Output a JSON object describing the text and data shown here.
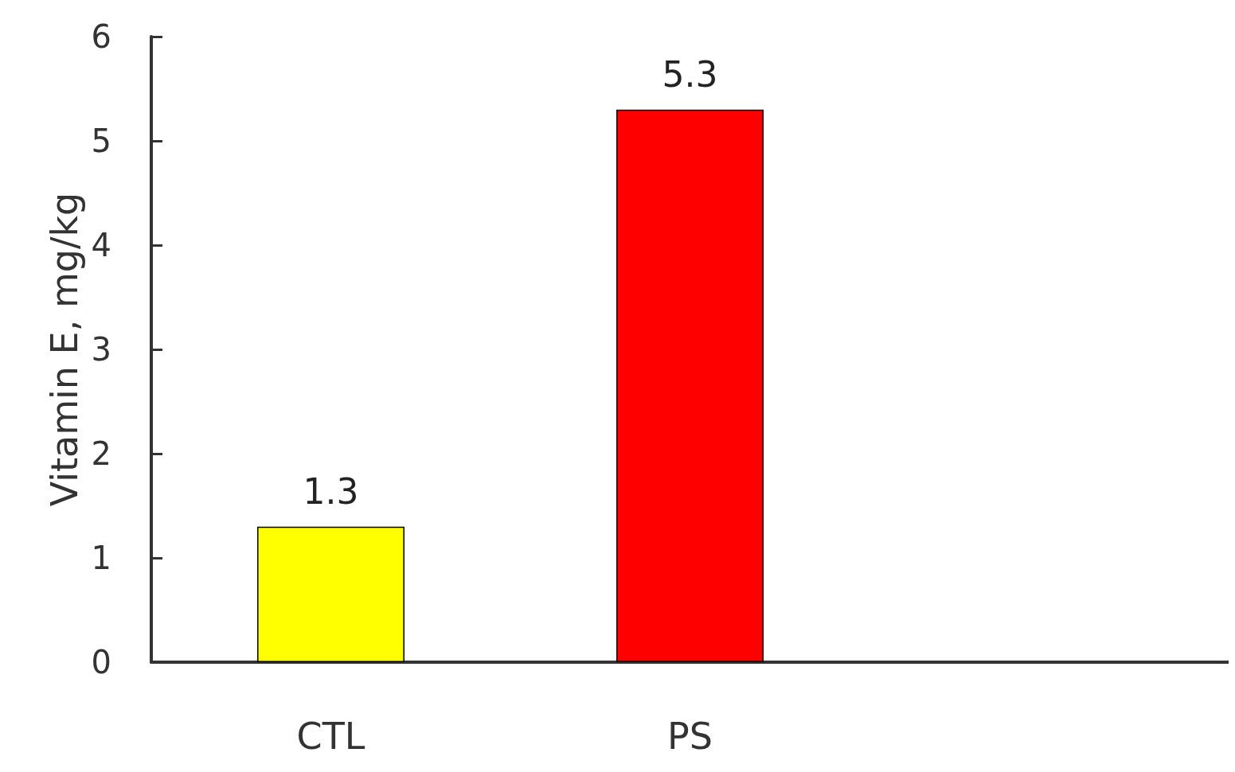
{
  "chart_data": {
    "type": "bar",
    "ylabel": "Vitamin E, mg/kg",
    "categories": [
      "CTL",
      "PS",
      null
    ],
    "values": [
      1.3,
      5.3,
      null
    ],
    "colors": [
      "#ffff00",
      "#ff0000",
      null
    ],
    "ylim": [
      0,
      6
    ],
    "yticks": [
      0,
      1,
      2,
      3,
      4,
      5,
      6
    ],
    "grid": false,
    "data_labels": true
  }
}
